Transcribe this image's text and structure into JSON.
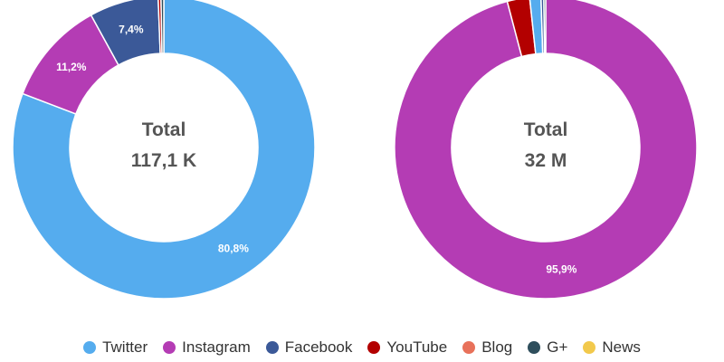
{
  "legend": [
    {
      "name": "Twitter",
      "color": "#55ACEE"
    },
    {
      "name": "Instagram",
      "color": "#B43CB4"
    },
    {
      "name": "Facebook",
      "color": "#3B5998"
    },
    {
      "name": "YouTube",
      "color": "#B30000"
    },
    {
      "name": "Blog",
      "color": "#E8715A"
    },
    {
      "name": "G+",
      "color": "#2E4E5C"
    },
    {
      "name": "News",
      "color": "#F2C94C"
    }
  ],
  "chart_data": [
    {
      "type": "pie",
      "center_label": "Total",
      "center_value": "117,1 K",
      "slices": [
        {
          "name": "Twitter",
          "value": 80.8,
          "label": "80,8%"
        },
        {
          "name": "Instagram",
          "value": 11.2,
          "label": "11,2%"
        },
        {
          "name": "Facebook",
          "value": 7.4,
          "label": "7,4%"
        },
        {
          "name": "YouTube",
          "value": 0.3,
          "label": ""
        },
        {
          "name": "G+",
          "value": 0.3,
          "label": ""
        }
      ]
    },
    {
      "type": "pie",
      "center_label": "Total",
      "center_value": "32 M",
      "slices": [
        {
          "name": "Instagram",
          "value": 95.9,
          "label": "95,9%"
        },
        {
          "name": "YouTube",
          "value": 2.4,
          "label": ""
        },
        {
          "name": "Twitter",
          "value": 1.2,
          "label": ""
        },
        {
          "name": "Facebook",
          "value": 0.3,
          "label": ""
        },
        {
          "name": "G+",
          "value": 0.2,
          "label": ""
        }
      ]
    }
  ]
}
